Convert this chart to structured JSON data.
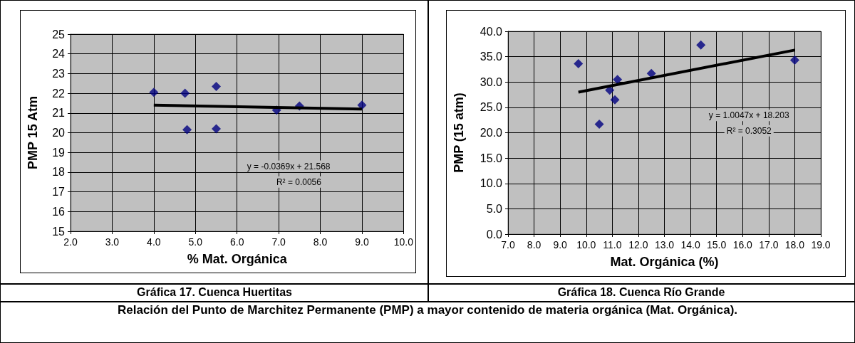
{
  "chart_data": [
    {
      "type": "scatter",
      "title": "Gráfica 17. Cuenca Huertitas",
      "xlabel": "% Mat. Orgánica",
      "ylabel": "PMP 15 Atm",
      "marker": "diamond",
      "grid": true,
      "xlim": [
        2,
        10
      ],
      "xticks": [
        {
          "value": 2,
          "label": "2.0"
        },
        {
          "value": 3,
          "label": "3.0"
        },
        {
          "value": 4,
          "label": "4.0"
        },
        {
          "value": 5,
          "label": "5.0"
        },
        {
          "value": 6,
          "label": "6.0"
        },
        {
          "value": 7,
          "label": "7.0"
        },
        {
          "value": 8,
          "label": "8.0"
        },
        {
          "value": 9,
          "label": "9.0"
        },
        {
          "value": 10,
          "label": "10.0"
        }
      ],
      "ylim": [
        15,
        25
      ],
      "yticks": [
        15,
        16,
        17,
        18,
        19,
        20,
        21,
        22,
        23,
        24,
        25
      ],
      "series": [
        {
          "color": "#000080",
          "x": [
            4.0,
            4.75,
            4.8,
            5.5,
            5.5,
            6.95,
            7.5,
            9.0
          ],
          "values": [
            22.05,
            22.0,
            20.15,
            22.35,
            20.2,
            21.15,
            21.35,
            21.4
          ]
        },
        {
          "type": "line",
          "color": "#000000",
          "marker": "none",
          "x": [
            4.0,
            9.0
          ],
          "values": [
            21.4,
            21.2
          ]
        }
      ],
      "annotations": [
        "y = -0.0369x + 21.568",
        "R² = 0.0056",
        "Relación del Punto de Marchitez Permanente (PMP) a mayor contenido de materia orgánica (Mat. Orgánica)."
      ]
    },
    {
      "type": "scatter",
      "title": "Gráfica 18. Cuenca Río Grande",
      "xlabel": "Mat. Orgánica (%)",
      "ylabel": "PMP (15 atm)",
      "marker": "diamond",
      "grid": true,
      "xlim": [
        7,
        19
      ],
      "xticks": [
        {
          "value": 7,
          "label": "7.0"
        },
        {
          "value": 8,
          "label": "8.0"
        },
        {
          "value": 9,
          "label": "9.0"
        },
        {
          "value": 10,
          "label": "10.0"
        },
        {
          "value": 11,
          "label": "11.0"
        },
        {
          "value": 12,
          "label": "12.0"
        },
        {
          "value": 13,
          "label": "13.0"
        },
        {
          "value": 14,
          "label": "14.0"
        },
        {
          "value": 15,
          "label": "15.0"
        },
        {
          "value": 16,
          "label": "16.0"
        },
        {
          "value": 17,
          "label": "17.0"
        },
        {
          "value": 18,
          "label": "18.0"
        },
        {
          "value": 19,
          "label": "19.0"
        }
      ],
      "ylim": [
        0,
        40
      ],
      "yticks": [
        {
          "value": 0,
          "label": "0.0"
        },
        {
          "value": 5,
          "label": "5.0"
        },
        {
          "value": 10,
          "label": "10.0"
        },
        {
          "value": 15,
          "label": "15.0"
        },
        {
          "value": 20,
          "label": "20.0"
        },
        {
          "value": 25,
          "label": "25.0"
        },
        {
          "value": 30,
          "label": "30.0"
        },
        {
          "value": 35,
          "label": "35.0"
        },
        {
          "value": 40,
          "label": "40.0"
        }
      ],
      "series": [
        {
          "color": "#000080",
          "x": [
            9.7,
            10.5,
            10.9,
            11.1,
            11.2,
            12.5,
            14.4,
            18.0
          ],
          "values": [
            33.6,
            21.7,
            28.4,
            26.5,
            30.5,
            31.7,
            37.3,
            34.3
          ]
        },
        {
          "type": "line",
          "color": "#000000",
          "marker": "none",
          "x": [
            9.7,
            18.0
          ],
          "values": [
            28.0,
            36.3
          ]
        }
      ],
      "annotations": [
        "y = 1.0047x + 18.203",
        "R² = 0.3052"
      ]
    }
  ]
}
